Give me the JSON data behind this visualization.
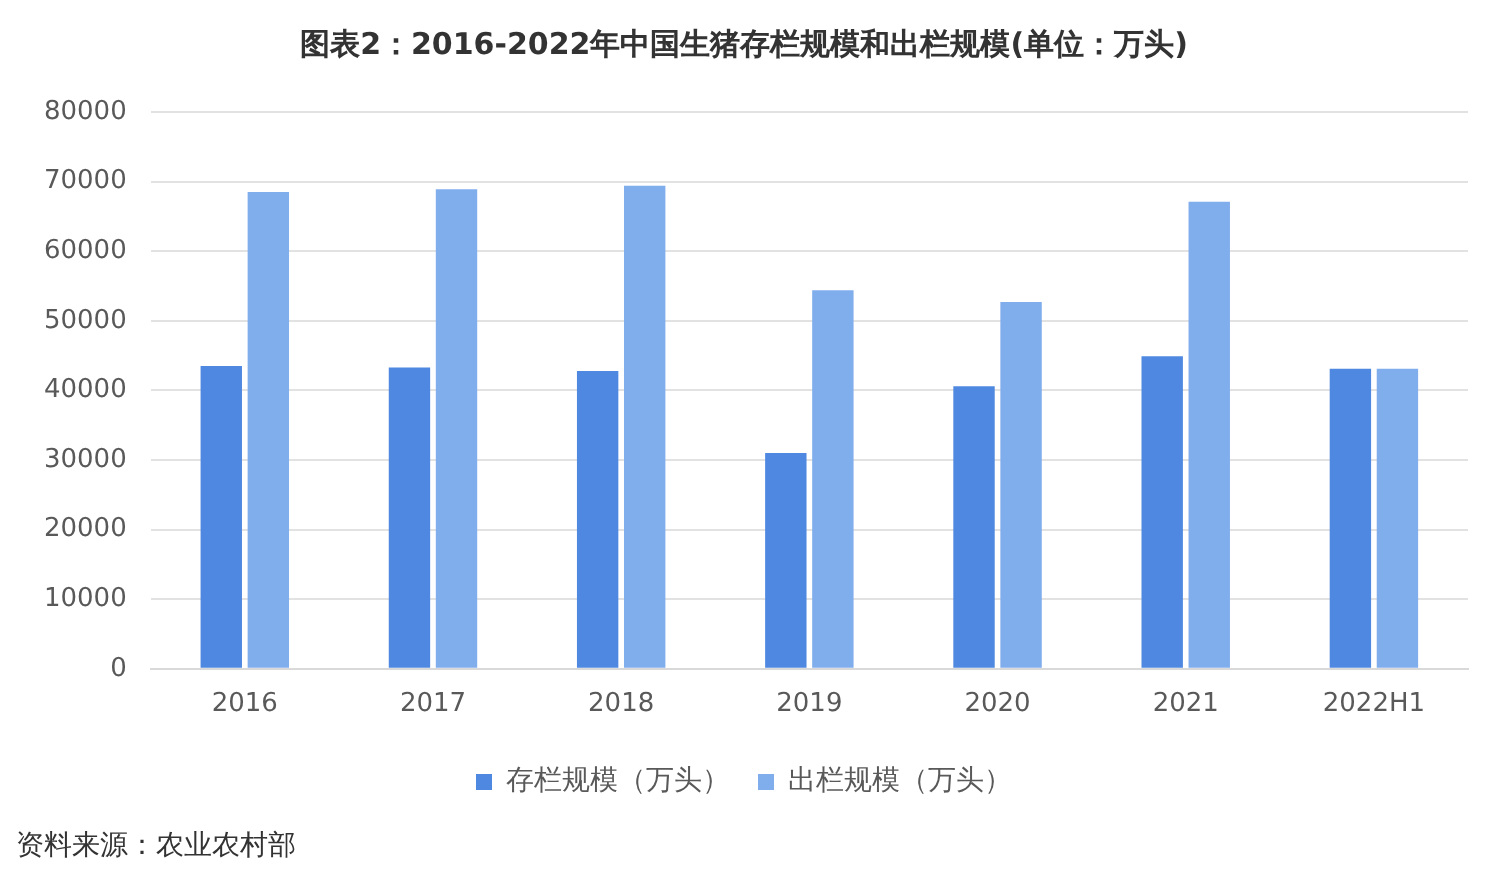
{
  "chart_data": {
    "type": "bar",
    "title": "图表2：2016-2022年中国生猪存栏规模和出栏规模(单位：万头)",
    "categories": [
      "2016",
      "2017",
      "2018",
      "2019",
      "2020",
      "2021",
      "2022H1"
    ],
    "series": [
      {
        "name": "存栏规模（万头）",
        "color": "#4f88e0",
        "values": [
          43500,
          43300,
          42800,
          31000,
          40600,
          44900,
          43100
        ]
      },
      {
        "name": "出栏规模（万头）",
        "color": "#80adec",
        "values": [
          68500,
          68900,
          69400,
          54400,
          52700,
          67100,
          43100
        ]
      }
    ],
    "ylim": [
      0,
      80000
    ],
    "yticks": [
      0,
      10000,
      20000,
      30000,
      40000,
      50000,
      60000,
      70000,
      80000
    ],
    "grid": "y",
    "legend": "bottom",
    "annotations": [
      "资料来源：农业农村部"
    ]
  }
}
